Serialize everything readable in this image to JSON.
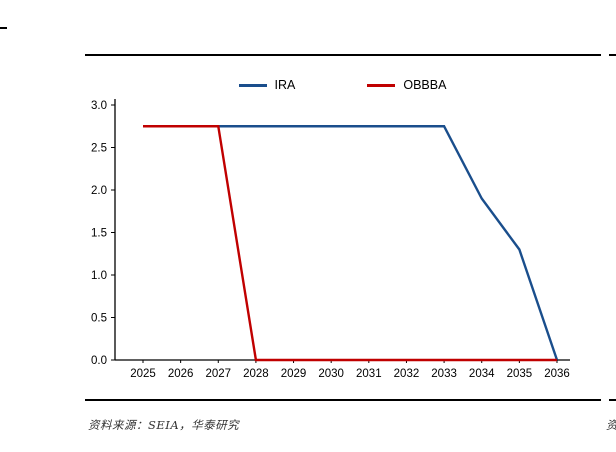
{
  "page": {
    "source_text": "资料来源：SEIA，华泰研究",
    "right_partial_text": "资"
  },
  "chart_data": {
    "type": "line",
    "title": "",
    "xlabel": "",
    "ylabel": "",
    "categories": [
      "2025",
      "2026",
      "2027",
      "2028",
      "2029",
      "2030",
      "2031",
      "2032",
      "2033",
      "2034",
      "2035",
      "2036"
    ],
    "series": [
      {
        "name": "IRA",
        "color": "#1A4E8C",
        "values": [
          2.75,
          2.75,
          2.75,
          2.75,
          2.75,
          2.75,
          2.75,
          2.75,
          2.75,
          1.9,
          1.3,
          0.0
        ]
      },
      {
        "name": "OBBBA",
        "color": "#C00000",
        "values": [
          2.75,
          2.75,
          2.75,
          0.0,
          0.0,
          0.0,
          0.0,
          0.0,
          0.0,
          0.0,
          0.0,
          0.0
        ]
      }
    ],
    "ylim": [
      0,
      3.0
    ],
    "yticks": [
      0.0,
      0.5,
      1.0,
      1.5,
      2.0,
      2.5,
      3.0
    ],
    "ytick_format_decimals": 1,
    "grid": false,
    "legend_position": "top-center",
    "axis_color": "#000000"
  }
}
